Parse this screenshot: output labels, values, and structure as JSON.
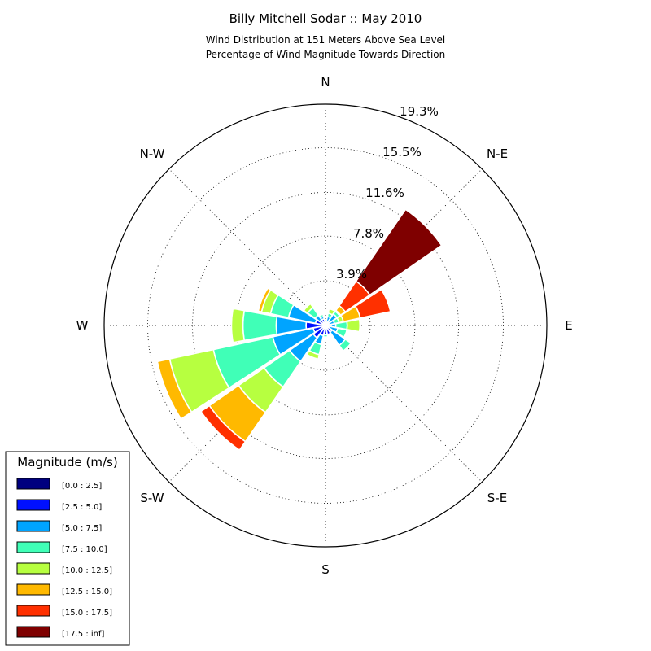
{
  "chart_data": {
    "type": "windrose",
    "title": "Billy Mitchell Sodar :: May 2010",
    "subtitle": [
      "Wind Distribution at 151 Meters Above Sea Level",
      "Percentage of Wind Magnitude Towards Direction"
    ],
    "directions": [
      "N",
      "N-E",
      "E",
      "S-E",
      "S",
      "S-W",
      "W",
      "N-W"
    ],
    "ring_labels": [
      "3.9%",
      "7.8%",
      "11.6%",
      "15.5%",
      "19.3%"
    ],
    "rmax": 19.3,
    "grid": true,
    "legend": {
      "title": "Magnitude (m/s)",
      "placement": "bottom-left",
      "bins": [
        {
          "label": "[0.0 : 2.5]",
          "color": "#00007f"
        },
        {
          "label": "[2.5 : 5.0]",
          "color": "#0010ff"
        },
        {
          "label": "[5.0 : 7.5]",
          "color": "#00a4ff"
        },
        {
          "label": "[7.5 : 10.0]",
          "color": "#40ffb7"
        },
        {
          "label": "[10.0 : 12.5]",
          "color": "#b7ff40"
        },
        {
          "label": "[12.5 : 15.0]",
          "color": "#ffb900"
        },
        {
          "label": "[15.0 : 17.5]",
          "color": "#ff3000"
        },
        {
          "label": "[17.5 : inf]",
          "color": "#7f0000"
        }
      ]
    },
    "sector_directions_deg": [
      0,
      22.5,
      45,
      67.5,
      90,
      112.5,
      135,
      157.5,
      180,
      202.5,
      225,
      247.5,
      270,
      292.5,
      315,
      337.5
    ],
    "cumulative_percent": [
      [
        0.2,
        0.5,
        0.5,
        0.5,
        0.5,
        0.5,
        0.5,
        0.5
      ],
      [
        0.1,
        0.3,
        0.8,
        1.1,
        1.5,
        1.6,
        1.6,
        1.6
      ],
      [
        0.1,
        0.4,
        1.2,
        1.5,
        1.6,
        2.1,
        4.7,
        12.3
      ],
      [
        0.1,
        0.3,
        0.8,
        1.2,
        1.6,
        3.1,
        5.8,
        5.9
      ],
      [
        0.1,
        0.5,
        0.9,
        1.9,
        3.0,
        3.0,
        3.0,
        3.0
      ],
      [
        0.1,
        0.3,
        1.1,
        1.9,
        1.9,
        1.9,
        1.9,
        1.9
      ],
      [
        0.2,
        0.7,
        2.1,
        2.7,
        2.7,
        2.7,
        2.7,
        2.7
      ],
      [
        0.2,
        0.8,
        0.8,
        0.8,
        0.8,
        0.8,
        0.8,
        0.8
      ],
      [
        0.2,
        0.8,
        0.8,
        1.0,
        1.0,
        1.0,
        1.0,
        1.0
      ],
      [
        0.1,
        0.9,
        1.7,
        2.6,
        3.0,
        3.0,
        3.0,
        3.0
      ],
      [
        0.1,
        1.3,
        3.8,
        6.5,
        9.2,
        12.3,
        13.2,
        13.2
      ],
      [
        0.1,
        1.1,
        4.7,
        10.0,
        13.9,
        15.0,
        15.0,
        15.0
      ],
      [
        0.1,
        1.7,
        4.3,
        7.2,
        8.2,
        8.2,
        8.2,
        8.2
      ],
      [
        0.1,
        0.9,
        3.3,
        4.9,
        5.7,
        6.0,
        6.0,
        6.0
      ],
      [
        0.2,
        0.6,
        1.1,
        1.9,
        2.3,
        2.3,
        2.3,
        2.3
      ],
      [
        0.1,
        0.6,
        0.8,
        1.0,
        1.0,
        1.0,
        1.0,
        1.0
      ]
    ]
  }
}
